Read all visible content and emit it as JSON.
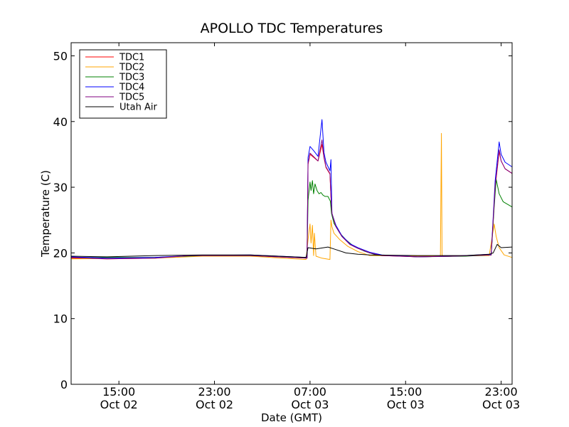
{
  "chart_data": {
    "type": "line",
    "title": "APOLLO TDC Temperatures",
    "xlabel": "Date (GMT)",
    "ylabel": "Temperature (C)",
    "ylim": [
      0,
      52
    ],
    "xlim": [
      "2013-10-02T11:00",
      "2013-10-03T23:55"
    ],
    "grid": false,
    "legend_position": "upper left",
    "x_ticks": [
      {
        "at": "2013-10-02T15:00",
        "line1": "15:00",
        "line2": "Oct 02"
      },
      {
        "at": "2013-10-02T23:00",
        "line1": "23:00",
        "line2": "Oct 02"
      },
      {
        "at": "2013-10-03T07:00",
        "line1": "07:00",
        "line2": "Oct 03"
      },
      {
        "at": "2013-10-03T15:00",
        "line1": "15:00",
        "line2": "Oct 03"
      },
      {
        "at": "2013-10-03T23:00",
        "line1": "23:00",
        "line2": "Oct 03"
      }
    ],
    "y_ticks": [
      0,
      10,
      20,
      30,
      40,
      50
    ],
    "series": [
      {
        "name": "TDC1",
        "color": "#ff0000",
        "x": [
          "2013-10-02T11:00",
          "2013-10-02T14:00",
          "2013-10-02T18:00",
          "2013-10-02T21:00",
          "2013-10-03T02:00",
          "2013-10-03T06:45",
          "2013-10-03T06:50",
          "2013-10-03T07:00",
          "2013-10-03T07:20",
          "2013-10-03T07:40",
          "2013-10-03T08:00",
          "2013-10-03T08:10",
          "2013-10-03T08:20",
          "2013-10-03T08:40",
          "2013-10-03T08:45",
          "2013-10-03T08:50",
          "2013-10-03T09:10",
          "2013-10-03T09:40",
          "2013-10-03T10:20",
          "2013-10-03T11:00",
          "2013-10-03T12:00",
          "2013-10-03T13:00",
          "2013-10-03T16:00",
          "2013-10-03T19:00",
          "2013-10-03T22:10",
          "2013-10-03T22:30",
          "2013-10-03T22:50",
          "2013-10-03T23:00",
          "2013-10-03T23:20",
          "2013-10-03T23:55"
        ],
        "y": [
          19.2,
          19.1,
          19.2,
          19.6,
          19.6,
          19.2,
          33.5,
          35.0,
          34.5,
          34.0,
          36.5,
          34.5,
          33.0,
          32.0,
          28.5,
          26.0,
          24.0,
          22.5,
          21.3,
          20.7,
          20.0,
          19.6,
          19.4,
          19.5,
          19.7,
          30.0,
          35.4,
          34.0,
          32.8,
          32.1
        ]
      },
      {
        "name": "TDC2",
        "color": "#ffa500",
        "x": [
          "2013-10-02T11:00",
          "2013-10-02T18:00",
          "2013-10-02T22:00",
          "2013-10-03T02:00",
          "2013-10-03T06:40",
          "2013-10-03T06:50",
          "2013-10-03T07:00",
          "2013-10-03T07:05",
          "2013-10-03T07:12",
          "2013-10-03T07:18",
          "2013-10-03T07:22",
          "2013-10-03T07:30",
          "2013-10-03T08:00",
          "2013-10-03T08:40",
          "2013-10-03T08:45",
          "2013-10-03T08:50",
          "2013-10-03T09:00",
          "2013-10-03T09:30",
          "2013-10-03T10:10",
          "2013-10-03T11:00",
          "2013-10-03T12:00",
          "2013-10-03T17:55",
          "2013-10-03T18:00",
          "2013-10-03T18:03",
          "2013-10-03T18:10",
          "2013-10-03T22:00",
          "2013-10-03T22:25",
          "2013-10-03T22:35",
          "2013-10-03T22:50",
          "2013-10-03T23:15",
          "2013-10-03T23:55"
        ],
        "y": [
          19.1,
          19.2,
          19.5,
          19.5,
          19.0,
          22.0,
          24.4,
          21.5,
          24.2,
          19.6,
          23.0,
          19.5,
          19.2,
          19.0,
          25.0,
          24.0,
          23.0,
          22.0,
          21.0,
          20.2,
          19.6,
          19.5,
          38.2,
          19.7,
          19.5,
          19.6,
          24.4,
          22.5,
          20.8,
          19.7,
          19.3
        ]
      },
      {
        "name": "TDC3",
        "color": "#008000",
        "x": [
          "2013-10-02T11:00",
          "2013-10-02T18:00",
          "2013-10-02T22:00",
          "2013-10-03T02:00",
          "2013-10-03T06:45",
          "2013-10-03T06:50",
          "2013-10-03T07:00",
          "2013-10-03T07:05",
          "2013-10-03T07:12",
          "2013-10-03T07:18",
          "2013-10-03T07:25",
          "2013-10-03T07:35",
          "2013-10-03T07:45",
          "2013-10-03T07:55",
          "2013-10-03T08:05",
          "2013-10-03T08:15",
          "2013-10-03T08:30",
          "2013-10-03T08:42",
          "2013-10-03T08:48",
          "2013-10-03T09:00",
          "2013-10-03T09:30",
          "2013-10-03T10:00",
          "2013-10-03T10:40",
          "2013-10-03T11:30",
          "2013-10-03T12:30",
          "2013-10-03T16:00",
          "2013-10-03T20:00",
          "2013-10-03T22:10",
          "2013-10-03T22:25",
          "2013-10-03T22:35",
          "2013-10-03T22:50",
          "2013-10-03T23:10",
          "2013-10-03T23:55"
        ],
        "y": [
          19.3,
          19.3,
          19.6,
          19.6,
          19.3,
          28.0,
          30.8,
          29.5,
          31.0,
          29.0,
          30.5,
          29.5,
          29.0,
          29.2,
          28.8,
          28.6,
          28.6,
          27.9,
          26.0,
          24.5,
          23.0,
          22.0,
          21.0,
          20.3,
          19.7,
          19.4,
          19.5,
          19.7,
          27.0,
          31.2,
          29.0,
          27.8,
          27.0
        ]
      },
      {
        "name": "TDC4",
        "color": "#0000ff",
        "x": [
          "2013-10-02T11:00",
          "2013-10-02T14:00",
          "2013-10-02T18:00",
          "2013-10-02T21:00",
          "2013-10-03T02:00",
          "2013-10-03T06:45",
          "2013-10-03T06:50",
          "2013-10-03T07:00",
          "2013-10-03T07:20",
          "2013-10-03T07:40",
          "2013-10-03T08:00",
          "2013-10-03T08:10",
          "2013-10-03T08:20",
          "2013-10-03T08:40",
          "2013-10-03T08:45",
          "2013-10-03T08:50",
          "2013-10-03T09:10",
          "2013-10-03T09:40",
          "2013-10-03T10:20",
          "2013-10-03T11:00",
          "2013-10-03T12:00",
          "2013-10-03T13:00",
          "2013-10-03T16:00",
          "2013-10-03T19:00",
          "2013-10-03T22:10",
          "2013-10-03T22:30",
          "2013-10-03T22:50",
          "2013-10-03T23:00",
          "2013-10-03T23:20",
          "2013-10-03T23:55"
        ],
        "y": [
          19.4,
          19.2,
          19.3,
          19.6,
          19.7,
          19.3,
          34.5,
          36.2,
          35.5,
          34.7,
          40.3,
          35.3,
          33.8,
          32.5,
          34.2,
          26.0,
          24.2,
          22.6,
          21.4,
          20.8,
          20.1,
          19.7,
          19.4,
          19.5,
          19.8,
          31.0,
          36.9,
          35.0,
          33.8,
          33.1
        ]
      },
      {
        "name": "TDC5",
        "color": "#800080",
        "x": [
          "2013-10-02T11:00",
          "2013-10-02T14:00",
          "2013-10-02T18:00",
          "2013-10-02T21:00",
          "2013-10-03T02:00",
          "2013-10-03T06:45",
          "2013-10-03T06:50",
          "2013-10-03T07:00",
          "2013-10-03T07:20",
          "2013-10-03T07:40",
          "2013-10-03T08:00",
          "2013-10-03T08:10",
          "2013-10-03T08:20",
          "2013-10-03T08:40",
          "2013-10-03T08:45",
          "2013-10-03T08:50",
          "2013-10-03T09:10",
          "2013-10-03T09:40",
          "2013-10-03T10:20",
          "2013-10-03T11:00",
          "2013-10-03T12:00",
          "2013-10-03T13:00",
          "2013-10-03T16:00",
          "2013-10-03T19:00",
          "2013-10-03T22:10",
          "2013-10-03T22:30",
          "2013-10-03T22:50",
          "2013-10-03T23:00",
          "2013-10-03T23:20",
          "2013-10-03T23:55"
        ],
        "y": [
          19.3,
          19.1,
          19.2,
          19.6,
          19.6,
          19.2,
          33.6,
          35.2,
          34.6,
          34.0,
          37.2,
          34.6,
          33.1,
          32.1,
          28.6,
          26.0,
          24.0,
          22.5,
          21.3,
          20.7,
          20.0,
          19.6,
          19.4,
          19.5,
          19.7,
          30.2,
          35.7,
          34.0,
          32.8,
          32.1
        ]
      },
      {
        "name": "Utah Air",
        "color": "#000000",
        "x": [
          "2013-10-02T11:00",
          "2013-10-02T14:00",
          "2013-10-02T18:00",
          "2013-10-02T22:00",
          "2013-10-03T02:00",
          "2013-10-03T06:40",
          "2013-10-03T06:50",
          "2013-10-03T07:30",
          "2013-10-03T08:30",
          "2013-10-03T09:00",
          "2013-10-03T10:00",
          "2013-10-03T11:00",
          "2013-10-03T12:00",
          "2013-10-03T16:00",
          "2013-10-03T20:00",
          "2013-10-03T22:00",
          "2013-10-03T22:20",
          "2013-10-03T22:40",
          "2013-10-03T23:00",
          "2013-10-03T23:55"
        ],
        "y": [
          19.5,
          19.4,
          19.6,
          19.7,
          19.7,
          19.3,
          20.8,
          20.6,
          20.9,
          20.6,
          20.0,
          19.8,
          19.7,
          19.6,
          19.6,
          19.8,
          20.0,
          21.3,
          20.8,
          20.9
        ]
      }
    ]
  }
}
